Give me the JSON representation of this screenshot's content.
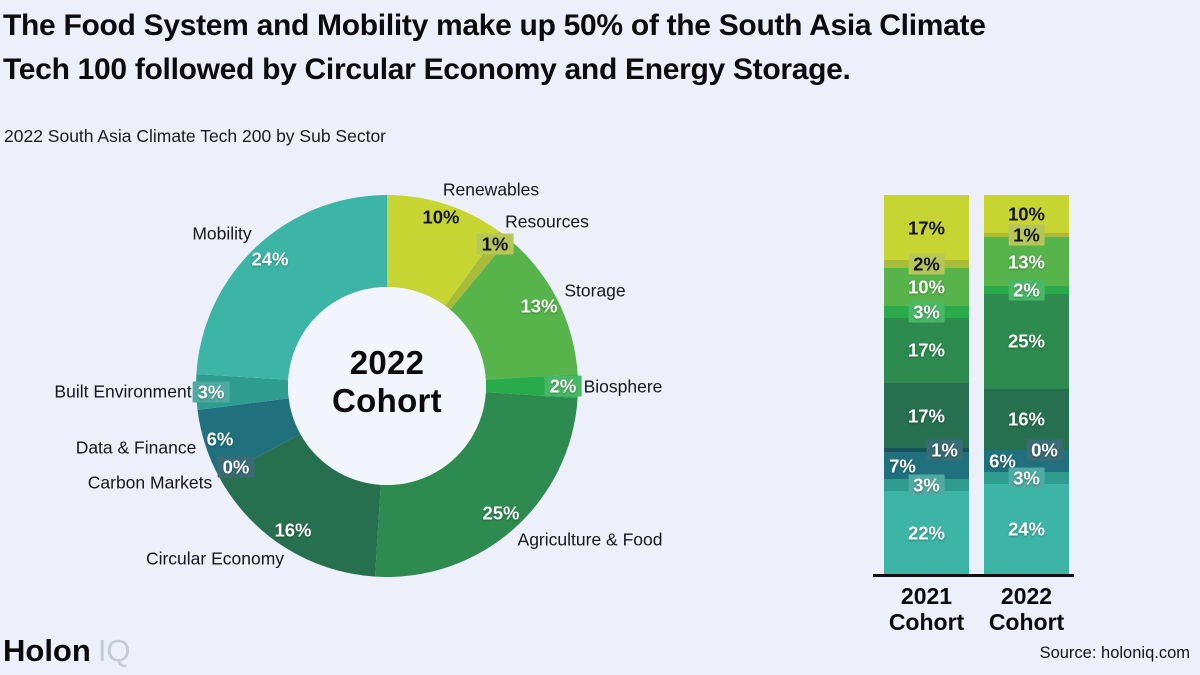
{
  "page": {
    "background_color": "#edf0fa",
    "title_lines": [
      "The Food System and Mobility make up 50% of the South Asia Climate",
      "Tech 100 followed by Circular Economy and Energy Storage."
    ],
    "subtitle": "2022 South Asia Climate Tech 200 by Sub Sector",
    "footer": {
      "logo_primary": "Holon",
      "logo_secondary": "IQ",
      "source": "Source: holoniq.com"
    }
  },
  "chart_data": [
    {
      "type": "pie",
      "subtype": "donut",
      "title": "2022 Cohort",
      "center_label_lines": [
        "2022",
        "Cohort"
      ],
      "unit": "%",
      "slices": [
        {
          "id": "renewables",
          "label": "Renewables",
          "value": 10,
          "color": "#c6d531"
        },
        {
          "id": "resources",
          "label": "Resources",
          "value": 1,
          "color": "#a9bc3a"
        },
        {
          "id": "storage",
          "label": "Storage",
          "value": 13,
          "color": "#56b44a"
        },
        {
          "id": "biosphere",
          "label": "Biosphere",
          "value": 2,
          "color": "#29ab4b"
        },
        {
          "id": "agriculture",
          "label": "Agriculture & Food",
          "value": 25,
          "color": "#2e8b4f"
        },
        {
          "id": "circular",
          "label": "Circular Economy",
          "value": 16,
          "color": "#27704f"
        },
        {
          "id": "carbon",
          "label": "Carbon Markets",
          "value": 0,
          "color": "#17525e"
        },
        {
          "id": "data_finance",
          "label": "Data & Finance",
          "value": 6,
          "color": "#20707d"
        },
        {
          "id": "built",
          "label": "Built Environment",
          "value": 3,
          "color": "#2f9c90"
        },
        {
          "id": "mobility",
          "label": "Mobility",
          "value": 24,
          "color": "#3db5a6"
        }
      ]
    },
    {
      "type": "bar",
      "subtype": "stacked-100",
      "unit": "%",
      "categories": [
        "2021 Cohort",
        "2022 Cohort"
      ],
      "series": [
        {
          "id": "renewables",
          "name": "Renewables",
          "color": "#c6d531",
          "values": [
            17,
            10
          ]
        },
        {
          "id": "resources",
          "name": "Resources",
          "color": "#a9bc3a",
          "values": [
            2,
            1
          ]
        },
        {
          "id": "storage",
          "name": "Storage",
          "color": "#56b44a",
          "values": [
            10,
            13
          ]
        },
        {
          "id": "biosphere",
          "name": "Biosphere",
          "color": "#29ab4b",
          "values": [
            3,
            2
          ]
        },
        {
          "id": "agriculture",
          "name": "Agriculture & Food",
          "color": "#2e8b4f",
          "values": [
            17,
            25
          ]
        },
        {
          "id": "circular",
          "name": "Circular Economy",
          "color": "#27704f",
          "values": [
            17,
            16
          ]
        },
        {
          "id": "carbon",
          "name": "Carbon Markets",
          "color": "#17525e",
          "values": [
            1,
            0
          ]
        },
        {
          "id": "data_finance",
          "name": "Data & Finance",
          "color": "#20707d",
          "values": [
            7,
            6
          ]
        },
        {
          "id": "built",
          "name": "Built Environment",
          "color": "#2f9c90",
          "values": [
            3,
            3
          ]
        },
        {
          "id": "mobility",
          "name": "Mobility",
          "color": "#3db5a6",
          "values": [
            22,
            24
          ]
        }
      ]
    }
  ]
}
